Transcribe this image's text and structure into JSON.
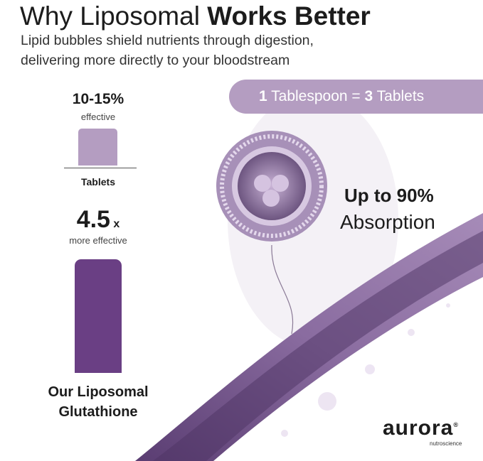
{
  "header": {
    "title_regular": "Why Liposomal ",
    "title_bold": "Works Better",
    "subtitle_line1": "Lipid bubbles shield nutrients through digestion,",
    "subtitle_line2": "delivering more directly to your bloodstream"
  },
  "pill": {
    "num1": "1",
    "text1": " Tablespoon = ",
    "num2": "3",
    "text2": " Tablets"
  },
  "tablets": {
    "value": "10-15%",
    "caption": "effective",
    "label": "Tablets"
  },
  "liposomal": {
    "value": "4.5",
    "unit": "x",
    "caption": "more effective",
    "label_line1": "Our Liposomal",
    "label_line2": "Glutathione"
  },
  "absorption": {
    "value": "Up to 90%",
    "label": "Absorption"
  },
  "brand": {
    "name": "aurora",
    "tagline": "nutroscience",
    "mark": "®"
  },
  "colors": {
    "light_purple": "#b49dc1",
    "dark_purple": "#6a3f84"
  }
}
